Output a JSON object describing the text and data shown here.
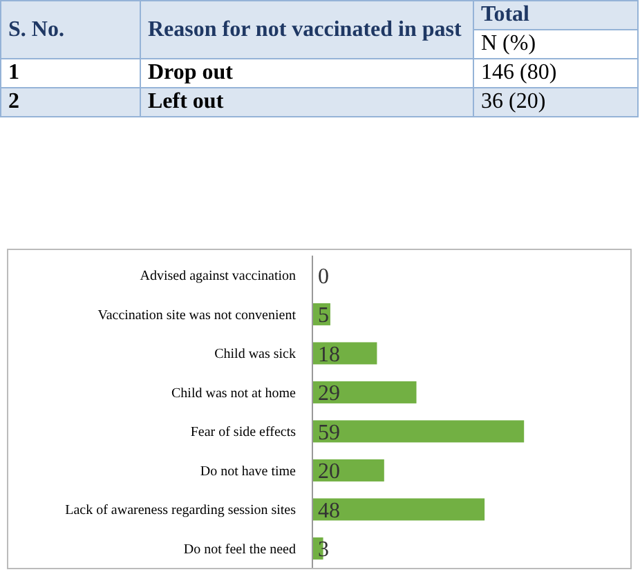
{
  "chart_data": [
    {
      "type": "other",
      "annotations": [
        "S. No.",
        "Reason for not vaccinated in past",
        "Total",
        "N (%)",
        "1",
        "Drop out",
        "146 (80)",
        "2",
        "Left out",
        "36 (20)"
      ]
    },
    {
      "type": "bar",
      "orientation": "horizontal",
      "categories": [
        "Advised against vaccination",
        "Vaccination site was not convenient",
        "Child was sick",
        "Child was not at home",
        "Fear of side effects",
        "Do not have time",
        "Lack of awareness regarding session sites",
        "Do not feel the need"
      ],
      "values": [
        0,
        5,
        18,
        29,
        59,
        20,
        48,
        3
      ],
      "color": "#72b043",
      "data_labels": true
    }
  ]
}
